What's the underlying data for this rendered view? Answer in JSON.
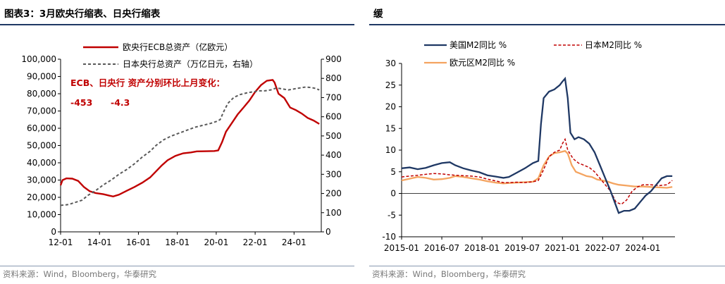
{
  "left": {
    "title": "图表3：3月欧央行缩表、日央行缩表",
    "source": "资料来源：Wind，Bloomberg，华泰研究",
    "annotation": {
      "heading": "ECB、日央行 资产分别环比上月变化：",
      "ecb_change": "-453",
      "boj_change": "-4.3"
    },
    "colors": {
      "ecb": "#c00000",
      "boj": "#595959"
    },
    "chart_data": {
      "type": "line",
      "x_labels": [
        "12-01",
        "14-01",
        "16-01",
        "18-01",
        "20-01",
        "22-01",
        "24-01"
      ],
      "x_label_years": [
        2012,
        2014,
        2016,
        2018,
        2020,
        2022,
        2024
      ],
      "x_range": [
        2012.0,
        2025.4
      ],
      "y_left": {
        "ticks": [
          "0",
          "10,000",
          "20,000",
          "30,000",
          "40,000",
          "50,000",
          "60,000",
          "70,000",
          "80,000",
          "90,000",
          "100,000"
        ],
        "range": [
          0,
          100000
        ]
      },
      "y_right": {
        "ticks": [
          "0",
          "100",
          "200",
          "300",
          "400",
          "500",
          "600",
          "700",
          "800",
          "900"
        ],
        "range": [
          0,
          900
        ]
      },
      "series": [
        {
          "name": "欧央行ECB总资产（亿欧元）",
          "axis": "left",
          "points": [
            [
              2012.0,
              27000
            ],
            [
              2012.1,
              30000
            ],
            [
              2012.3,
              31000
            ],
            [
              2012.6,
              30800
            ],
            [
              2012.9,
              29500
            ],
            [
              2013.2,
              26000
            ],
            [
              2013.5,
              23500
            ],
            [
              2013.8,
              22500
            ],
            [
              2014.2,
              21800
            ],
            [
              2014.5,
              21000
            ],
            [
              2014.7,
              20500
            ],
            [
              2015.0,
              21500
            ],
            [
              2015.4,
              23800
            ],
            [
              2015.8,
              26000
            ],
            [
              2016.2,
              28500
            ],
            [
              2016.6,
              31500
            ],
            [
              2016.9,
              35000
            ],
            [
              2017.2,
              38500
            ],
            [
              2017.5,
              41500
            ],
            [
              2017.9,
              44000
            ],
            [
              2018.3,
              45500
            ],
            [
              2018.7,
              46000
            ],
            [
              2019.0,
              46600
            ],
            [
              2019.5,
              46700
            ],
            [
              2019.9,
              46800
            ],
            [
              2020.1,
              47200
            ],
            [
              2020.3,
              52000
            ],
            [
              2020.5,
              58000
            ],
            [
              2020.8,
              63000
            ],
            [
              2021.1,
              68000
            ],
            [
              2021.4,
              72000
            ],
            [
              2021.7,
              76000
            ],
            [
              2022.0,
              81000
            ],
            [
              2022.3,
              85000
            ],
            [
              2022.6,
              87500
            ],
            [
              2022.9,
              88000
            ],
            [
              2023.0,
              86500
            ],
            [
              2023.2,
              80000
            ],
            [
              2023.5,
              77500
            ],
            [
              2023.8,
              72000
            ],
            [
              2024.1,
              70500
            ],
            [
              2024.4,
              68500
            ],
            [
              2024.7,
              66000
            ],
            [
              2025.0,
              64500
            ],
            [
              2025.3,
              62500
            ]
          ]
        },
        {
          "name": "日本央行总资产（万亿日元，右轴）",
          "axis": "right",
          "points": [
            [
              2012.0,
              138
            ],
            [
              2012.4,
              142
            ],
            [
              2012.8,
              155
            ],
            [
              2013.1,
              165
            ],
            [
              2013.4,
              190
            ],
            [
              2013.8,
              215
            ],
            [
              2014.2,
              245
            ],
            [
              2014.6,
              270
            ],
            [
              2015.0,
              300
            ],
            [
              2015.4,
              325
            ],
            [
              2015.8,
              355
            ],
            [
              2016.2,
              390
            ],
            [
              2016.6,
              420
            ],
            [
              2016.9,
              450
            ],
            [
              2017.3,
              480
            ],
            [
              2017.7,
              500
            ],
            [
              2018.1,
              515
            ],
            [
              2018.5,
              530
            ],
            [
              2018.9,
              545
            ],
            [
              2019.3,
              555
            ],
            [
              2019.7,
              565
            ],
            [
              2020.0,
              575
            ],
            [
              2020.2,
              585
            ],
            [
              2020.4,
              630
            ],
            [
              2020.6,
              670
            ],
            [
              2020.9,
              700
            ],
            [
              2021.2,
              715
            ],
            [
              2021.6,
              725
            ],
            [
              2021.9,
              730
            ],
            [
              2022.2,
              735
            ],
            [
              2022.5,
              735
            ],
            [
              2022.8,
              740
            ],
            [
              2023.1,
              750
            ],
            [
              2023.4,
              745
            ],
            [
              2023.7,
              740
            ],
            [
              2024.0,
              745
            ],
            [
              2024.3,
              750
            ],
            [
              2024.6,
              755
            ],
            [
              2024.9,
              752
            ],
            [
              2025.1,
              748
            ],
            [
              2025.3,
              740
            ]
          ]
        }
      ]
    }
  },
  "right": {
    "title": "缓",
    "source": "资料来源：Wind，Bloomberg，华泰研究",
    "colors": {
      "us": "#1f3864",
      "jp": "#c00000",
      "ez": "#f4a460"
    },
    "chart_data": {
      "type": "line",
      "x_labels": [
        "2015-01",
        "2016-07",
        "2018-01",
        "2019-07",
        "2021-01",
        "2022-07",
        "2024-01"
      ],
      "x_label_years": [
        2015.0,
        2016.5,
        2018.0,
        2019.5,
        2021.0,
        2022.5,
        2024.0
      ],
      "x_range": [
        2015.0,
        2025.2
      ],
      "y": {
        "ticks": [
          "-10",
          "-5",
          "0",
          "5",
          "10",
          "15",
          "20",
          "25",
          "30"
        ],
        "range": [
          -10,
          30
        ]
      },
      "series": [
        {
          "name": "美国M2同比 %",
          "points": [
            [
              2015.0,
              5.8
            ],
            [
              2015.3,
              6.0
            ],
            [
              2015.6,
              5.6
            ],
            [
              2015.9,
              5.9
            ],
            [
              2016.2,
              6.5
            ],
            [
              2016.5,
              7.0
            ],
            [
              2016.8,
              7.2
            ],
            [
              2017.0,
              6.5
            ],
            [
              2017.3,
              5.8
            ],
            [
              2017.6,
              5.3
            ],
            [
              2017.9,
              4.9
            ],
            [
              2018.2,
              4.2
            ],
            [
              2018.5,
              3.9
            ],
            [
              2018.8,
              3.6
            ],
            [
              2019.0,
              3.8
            ],
            [
              2019.3,
              4.8
            ],
            [
              2019.6,
              5.8
            ],
            [
              2019.9,
              7.0
            ],
            [
              2020.1,
              7.5
            ],
            [
              2020.2,
              16
            ],
            [
              2020.3,
              22
            ],
            [
              2020.5,
              23.5
            ],
            [
              2020.7,
              24
            ],
            [
              2020.9,
              25
            ],
            [
              2021.0,
              25.8
            ],
            [
              2021.1,
              26.5
            ],
            [
              2021.2,
              22
            ],
            [
              2021.3,
              14
            ],
            [
              2021.45,
              12.5
            ],
            [
              2021.6,
              13
            ],
            [
              2021.8,
              12.5
            ],
            [
              2022.0,
              11.5
            ],
            [
              2022.2,
              9.5
            ],
            [
              2022.4,
              6.5
            ],
            [
              2022.6,
              3.5
            ],
            [
              2022.8,
              0.5
            ],
            [
              2022.95,
              -2
            ],
            [
              2023.1,
              -4.5
            ],
            [
              2023.3,
              -4
            ],
            [
              2023.5,
              -4
            ],
            [
              2023.7,
              -3.5
            ],
            [
              2023.9,
              -2
            ],
            [
              2024.1,
              -0.5
            ],
            [
              2024.3,
              0.5
            ],
            [
              2024.5,
              2
            ],
            [
              2024.7,
              3.5
            ],
            [
              2024.9,
              4
            ],
            [
              2025.1,
              4
            ]
          ]
        },
        {
          "name": "日本M2同比 %",
          "points": [
            [
              2015.0,
              3.8
            ],
            [
              2015.3,
              4.0
            ],
            [
              2015.6,
              4.2
            ],
            [
              2015.9,
              4.4
            ],
            [
              2016.2,
              4.6
            ],
            [
              2016.5,
              4.5
            ],
            [
              2016.8,
              4.3
            ],
            [
              2017.0,
              4.2
            ],
            [
              2017.3,
              4.1
            ],
            [
              2017.6,
              4.0
            ],
            [
              2017.9,
              3.8
            ],
            [
              2018.2,
              3.3
            ],
            [
              2018.5,
              2.9
            ],
            [
              2018.8,
              2.5
            ],
            [
              2019.0,
              2.5
            ],
            [
              2019.3,
              2.6
            ],
            [
              2019.6,
              2.5
            ],
            [
              2019.9,
              2.7
            ],
            [
              2020.1,
              3.0
            ],
            [
              2020.3,
              5.5
            ],
            [
              2020.5,
              8.5
            ],
            [
              2020.7,
              9.5
            ],
            [
              2020.9,
              10
            ],
            [
              2021.0,
              11.5
            ],
            [
              2021.1,
              12.5
            ],
            [
              2021.2,
              10
            ],
            [
              2021.4,
              8
            ],
            [
              2021.6,
              7
            ],
            [
              2021.8,
              6.5
            ],
            [
              2022.0,
              6
            ],
            [
              2022.2,
              5
            ],
            [
              2022.4,
              3.5
            ],
            [
              2022.6,
              2
            ],
            [
              2022.8,
              0.5
            ],
            [
              2023.0,
              -2
            ],
            [
              2023.2,
              -2.5
            ],
            [
              2023.4,
              -1.5
            ],
            [
              2023.6,
              0.5
            ],
            [
              2023.8,
              1.5
            ],
            [
              2024.0,
              2
            ],
            [
              2024.3,
              2
            ],
            [
              2024.6,
              1.8
            ],
            [
              2024.9,
              2
            ],
            [
              2025.1,
              3
            ]
          ]
        },
        {
          "name": "欧元区M2同比 %",
          "points": [
            [
              2015.0,
              3.0
            ],
            [
              2015.3,
              3.4
            ],
            [
              2015.6,
              3.8
            ],
            [
              2015.9,
              3.6
            ],
            [
              2016.2,
              3.2
            ],
            [
              2016.5,
              3.3
            ],
            [
              2016.8,
              3.6
            ],
            [
              2017.0,
              4.0
            ],
            [
              2017.3,
              3.8
            ],
            [
              2017.6,
              3.5
            ],
            [
              2017.9,
              3.2
            ],
            [
              2018.2,
              2.8
            ],
            [
              2018.5,
              2.5
            ],
            [
              2018.8,
              2.3
            ],
            [
              2019.0,
              2.4
            ],
            [
              2019.3,
              2.5
            ],
            [
              2019.6,
              2.6
            ],
            [
              2019.9,
              2.7
            ],
            [
              2020.1,
              3.5
            ],
            [
              2020.3,
              6.5
            ],
            [
              2020.5,
              8.5
            ],
            [
              2020.7,
              9.3
            ],
            [
              2020.9,
              9.5
            ],
            [
              2021.1,
              9.8
            ],
            [
              2021.2,
              9.2
            ],
            [
              2021.35,
              6.5
            ],
            [
              2021.5,
              5
            ],
            [
              2021.7,
              4.5
            ],
            [
              2021.9,
              4
            ],
            [
              2022.1,
              3.8
            ],
            [
              2022.3,
              3.2
            ],
            [
              2022.5,
              3.0
            ],
            [
              2022.7,
              2.7
            ],
            [
              2022.9,
              2.3
            ],
            [
              2023.1,
              2.0
            ],
            [
              2023.4,
              1.8
            ],
            [
              2023.7,
              1.6
            ],
            [
              2024.0,
              1.6
            ],
            [
              2024.3,
              1.5
            ],
            [
              2024.6,
              1.4
            ],
            [
              2024.9,
              1.3
            ],
            [
              2025.1,
              1.5
            ]
          ]
        }
      ]
    }
  }
}
